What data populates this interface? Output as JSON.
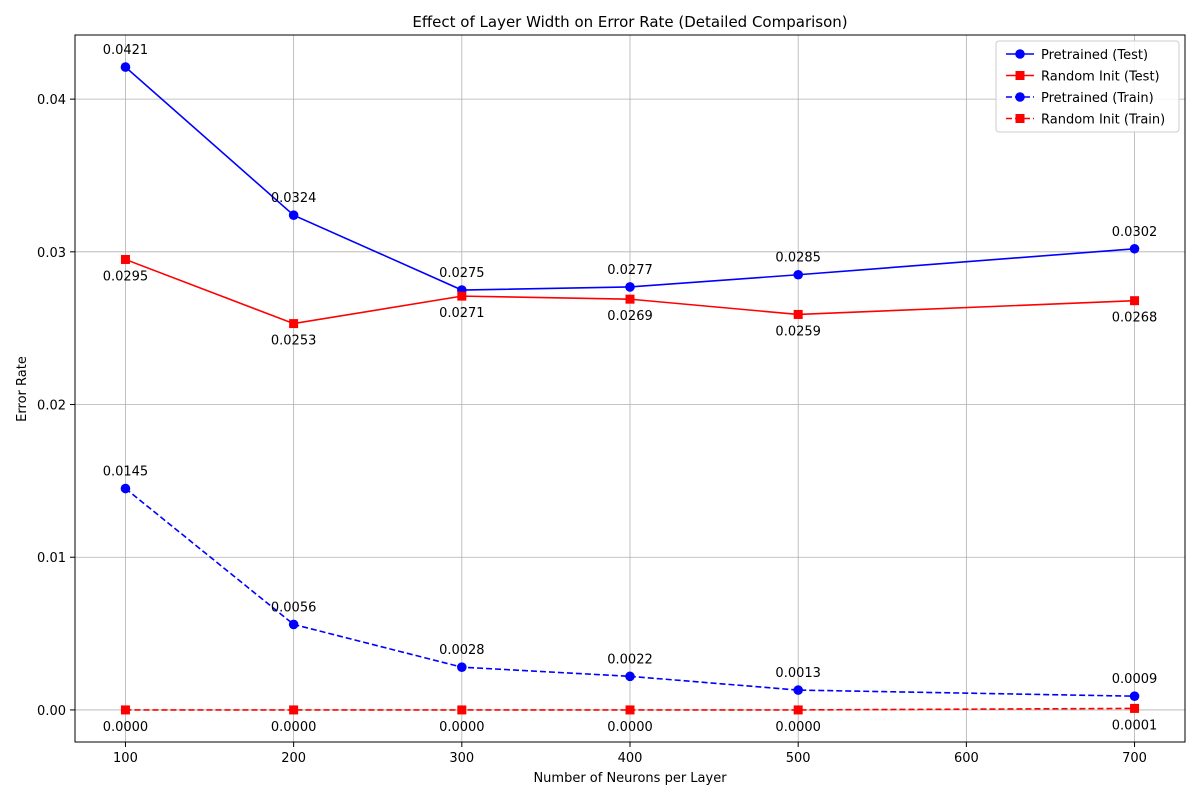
{
  "chart_data": {
    "type": "line",
    "title": "Effect of Layer Width on Error Rate (Detailed Comparison)",
    "xlabel": "Number of Neurons per Layer",
    "ylabel": "Error Rate",
    "xlim": [
      70,
      730
    ],
    "ylim": [
      -0.0021,
      0.0442
    ],
    "grid": true,
    "legend_position": "top-right",
    "xticks": [
      100,
      200,
      300,
      400,
      500,
      600,
      700
    ],
    "xtick_labels": [
      "100",
      "200",
      "300",
      "400",
      "500",
      "600",
      "700"
    ],
    "yticks": [
      0.0,
      0.01,
      0.02,
      0.03,
      0.04
    ],
    "ytick_labels": [
      "0.00",
      "0.01",
      "0.02",
      "0.03",
      "0.04"
    ],
    "x": [
      100,
      200,
      300,
      400,
      500,
      700
    ],
    "series": [
      {
        "name": "Pretrained (Test)",
        "color": "#0000ff",
        "line": "solid",
        "marker": "circle",
        "values": [
          0.0421,
          0.0324,
          0.0275,
          0.0277,
          0.0285,
          0.0302
        ],
        "labels": [
          "0.0421",
          "0.0324",
          "0.0275",
          "0.0277",
          "0.0285",
          "0.0302"
        ],
        "label_side": "above"
      },
      {
        "name": "Random Init (Test)",
        "color": "#ff0000",
        "line": "solid",
        "marker": "square",
        "values": [
          0.0295,
          0.0253,
          0.0271,
          0.0269,
          0.0259,
          0.0268
        ],
        "labels": [
          "0.0295",
          "0.0253",
          "0.0271",
          "0.0269",
          "0.0259",
          "0.0268"
        ],
        "label_side": "below"
      },
      {
        "name": "Pretrained (Train)",
        "color": "#0000ff",
        "line": "dashed",
        "marker": "circle",
        "values": [
          0.0145,
          0.0056,
          0.0028,
          0.0022,
          0.0013,
          0.0009
        ],
        "labels": [
          "0.0145",
          "0.0056",
          "0.0028",
          "0.0022",
          "0.0013",
          "0.0009"
        ],
        "label_side": "above"
      },
      {
        "name": "Random Init (Train)",
        "color": "#ff0000",
        "line": "dashed",
        "marker": "square",
        "values": [
          0.0,
          0.0,
          0.0,
          0.0,
          0.0,
          0.0001
        ],
        "labels": [
          "0.0000",
          "0.0000",
          "0.0000",
          "0.0000",
          "0.0000",
          "0.0001"
        ],
        "label_side": "below"
      }
    ]
  }
}
